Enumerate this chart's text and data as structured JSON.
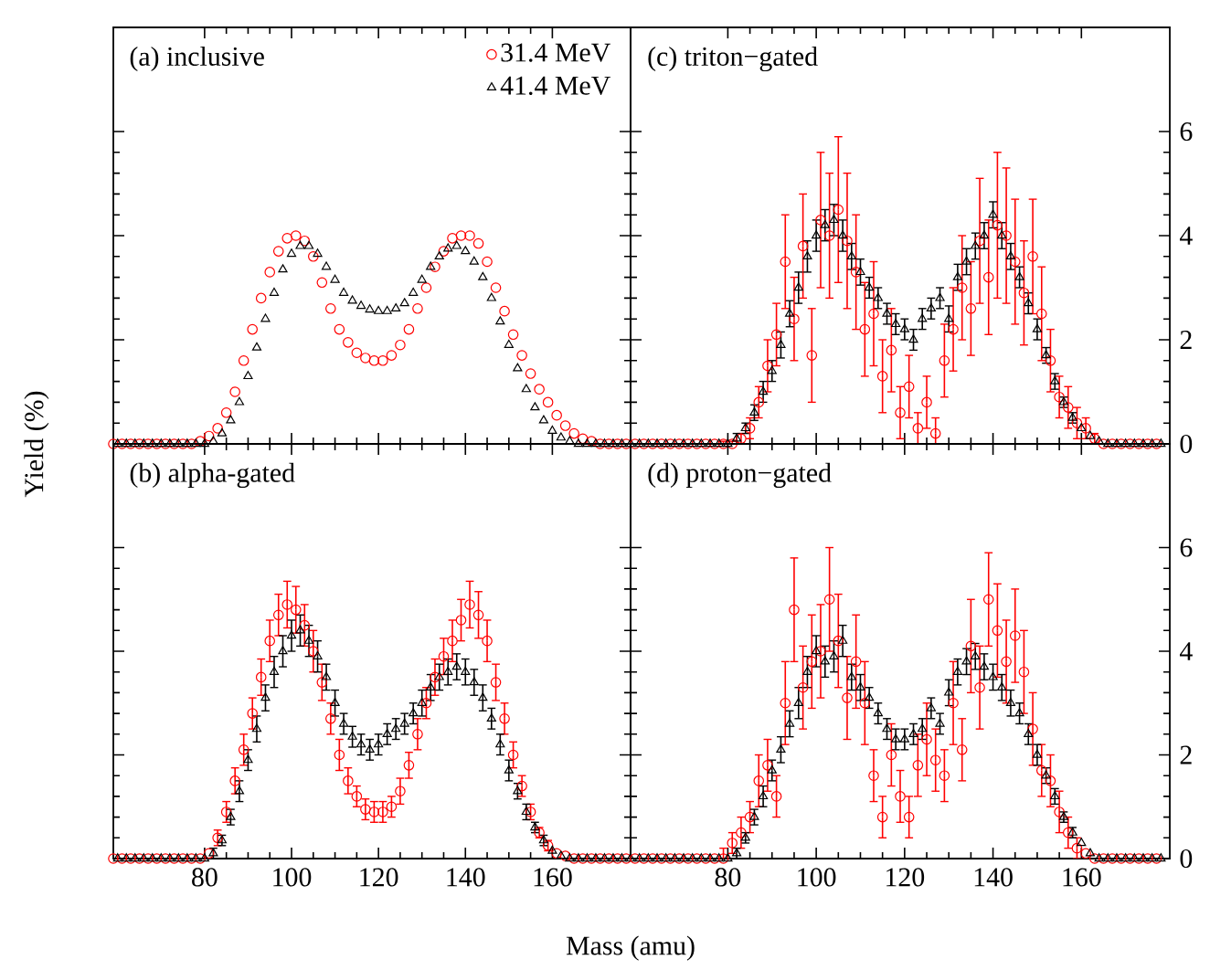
{
  "chart_data": [
    {
      "type": "scatter",
      "title": "(a) inclusive",
      "ylabel": "Yield (%)",
      "xlim": [
        59,
        178
      ],
      "ylim": [
        0,
        8
      ],
      "xticks": [
        80,
        100,
        120,
        140,
        160
      ],
      "yticks": [
        0,
        2,
        4,
        6
      ],
      "tick_labels": false,
      "legend": "top right",
      "x": [
        60,
        62,
        64,
        66,
        68,
        70,
        72,
        74,
        76,
        78,
        80,
        82,
        84,
        86,
        88,
        90,
        92,
        94,
        96,
        98,
        100,
        102,
        104,
        106,
        108,
        110,
        112,
        114,
        116,
        118,
        120,
        122,
        124,
        126,
        128,
        130,
        132,
        134,
        136,
        138,
        140,
        142,
        144,
        146,
        148,
        150,
        152,
        154,
        156,
        158,
        160,
        162,
        164,
        166,
        168,
        170,
        172,
        174,
        176,
        178
      ],
      "series": [
        {
          "name": "31.4 MeV",
          "color": "#ff0000",
          "marker": "circle",
          "x": [
            59,
            61,
            63,
            65,
            67,
            69,
            71,
            73,
            75,
            77,
            79,
            81,
            83,
            85,
            87,
            89,
            91,
            93,
            95,
            97,
            99,
            101,
            103,
            105,
            107,
            109,
            111,
            113,
            115,
            117,
            119,
            121,
            123,
            125,
            127,
            129,
            131,
            133,
            135,
            137,
            139,
            141,
            143,
            145,
            147,
            149,
            151,
            153,
            155,
            157,
            159,
            161,
            163,
            165,
            167,
            169,
            171,
            173,
            175,
            177
          ],
          "values": [
            0,
            0,
            0,
            0,
            0,
            0,
            0,
            0,
            0,
            0,
            0.05,
            0.15,
            0.3,
            0.6,
            1.0,
            1.6,
            2.2,
            2.8,
            3.3,
            3.7,
            3.95,
            4.0,
            3.9,
            3.6,
            3.1,
            2.6,
            2.2,
            1.95,
            1.75,
            1.65,
            1.6,
            1.6,
            1.7,
            1.9,
            2.2,
            2.6,
            3.0,
            3.4,
            3.7,
            3.95,
            4.0,
            4.0,
            3.85,
            3.5,
            3.0,
            2.55,
            2.1,
            1.7,
            1.35,
            1.05,
            0.8,
            0.55,
            0.35,
            0.2,
            0.1,
            0.05,
            0,
            0,
            0,
            0
          ]
        },
        {
          "name": "41.4 MeV",
          "color": "#000000",
          "marker": "triangle",
          "values": [
            0,
            0,
            0,
            0,
            0,
            0,
            0,
            0,
            0,
            0,
            0,
            0.05,
            0.2,
            0.45,
            0.8,
            1.3,
            1.85,
            2.4,
            2.9,
            3.35,
            3.65,
            3.8,
            3.8,
            3.65,
            3.4,
            3.15,
            2.9,
            2.75,
            2.65,
            2.58,
            2.55,
            2.55,
            2.6,
            2.7,
            2.9,
            3.15,
            3.4,
            3.6,
            3.75,
            3.8,
            3.7,
            3.5,
            3.2,
            2.8,
            2.35,
            1.9,
            1.45,
            1.05,
            0.7,
            0.45,
            0.25,
            0.12,
            0.05,
            0,
            0,
            0,
            0,
            0,
            0,
            0
          ]
        }
      ]
    },
    {
      "type": "scatter",
      "title": "(b) alpha-gated",
      "xlabel": "Mass (amu)",
      "xlim": [
        59,
        178
      ],
      "ylim": [
        0,
        8
      ],
      "xticks": [
        80,
        100,
        120,
        140,
        160
      ],
      "yticks": [
        0,
        2,
        4,
        6
      ],
      "tick_labels": "x",
      "x": [
        60,
        62,
        64,
        66,
        68,
        70,
        72,
        74,
        76,
        78,
        80,
        82,
        84,
        86,
        88,
        90,
        92,
        94,
        96,
        98,
        100,
        102,
        104,
        106,
        108,
        110,
        112,
        114,
        116,
        118,
        120,
        122,
        124,
        126,
        128,
        130,
        132,
        134,
        136,
        138,
        140,
        142,
        144,
        146,
        148,
        150,
        152,
        154,
        156,
        158,
        160,
        162,
        164,
        166,
        168,
        170,
        172,
        174,
        176,
        178
      ],
      "series": [
        {
          "color": "#ff0000",
          "marker": "circle",
          "x": [
            59,
            61,
            63,
            65,
            67,
            69,
            71,
            73,
            75,
            77,
            79,
            81,
            83,
            85,
            87,
            89,
            91,
            93,
            95,
            97,
            99,
            101,
            103,
            105,
            107,
            109,
            111,
            113,
            115,
            117,
            119,
            121,
            123,
            125,
            127,
            129,
            131,
            133,
            135,
            137,
            139,
            141,
            143,
            145,
            147,
            149,
            151,
            153,
            155,
            157,
            159,
            161,
            163,
            165,
            167,
            169,
            171,
            173,
            175,
            177
          ],
          "values": [
            0,
            0,
            0,
            0,
            0,
            0,
            0,
            0,
            0,
            0,
            0,
            0.1,
            0.4,
            0.9,
            1.5,
            2.1,
            2.8,
            3.5,
            4.2,
            4.7,
            4.9,
            4.8,
            4.5,
            4.0,
            3.4,
            2.7,
            2.0,
            1.5,
            1.2,
            0.95,
            0.9,
            0.9,
            1.0,
            1.3,
            1.8,
            2.4,
            3.0,
            3.5,
            3.9,
            4.2,
            4.6,
            4.9,
            4.7,
            4.2,
            3.4,
            2.7,
            2.0,
            1.4,
            0.9,
            0.5,
            0.25,
            0.1,
            0.05,
            0,
            0,
            0,
            0,
            0,
            0,
            0
          ],
          "errors": [
            null,
            null,
            null,
            null,
            null,
            null,
            null,
            null,
            null,
            null,
            null,
            null,
            0.15,
            0.2,
            0.25,
            0.3,
            0.3,
            0.35,
            0.4,
            0.4,
            0.45,
            0.45,
            0.4,
            0.4,
            0.35,
            0.3,
            0.3,
            0.25,
            0.2,
            0.2,
            0.2,
            0.2,
            0.2,
            0.25,
            0.25,
            0.3,
            0.3,
            0.35,
            0.35,
            0.4,
            0.4,
            0.45,
            0.45,
            0.4,
            0.35,
            0.3,
            0.25,
            0.2,
            0.15,
            0.1,
            0.1,
            null,
            null,
            null,
            null,
            null,
            null,
            null,
            null,
            null
          ]
        },
        {
          "color": "#000000",
          "marker": "triangle",
          "values": [
            0,
            0,
            0,
            0,
            0,
            0,
            0,
            0,
            0,
            0,
            0,
            0.1,
            0.35,
            0.8,
            1.3,
            1.9,
            2.5,
            3.1,
            3.6,
            4.0,
            4.3,
            4.4,
            4.2,
            3.9,
            3.5,
            3.0,
            2.6,
            2.35,
            2.2,
            2.1,
            2.2,
            2.4,
            2.5,
            2.6,
            2.8,
            3.0,
            3.3,
            3.5,
            3.6,
            3.7,
            3.6,
            3.4,
            3.1,
            2.7,
            2.2,
            1.7,
            1.3,
            0.9,
            0.6,
            0.35,
            0.15,
            0.05,
            0,
            0,
            0,
            0,
            0,
            0,
            0,
            0
          ],
          "errors": [
            null,
            null,
            null,
            null,
            null,
            null,
            null,
            null,
            null,
            null,
            null,
            0.1,
            0.1,
            0.15,
            0.2,
            0.2,
            0.25,
            0.25,
            0.3,
            0.3,
            0.3,
            0.3,
            0.3,
            0.3,
            0.25,
            0.25,
            0.2,
            0.2,
            0.2,
            0.2,
            0.2,
            0.2,
            0.2,
            0.2,
            0.2,
            0.25,
            0.25,
            0.25,
            0.25,
            0.25,
            0.25,
            0.25,
            0.25,
            0.2,
            0.2,
            0.2,
            0.15,
            0.15,
            0.1,
            0.1,
            null,
            null,
            null,
            null,
            null,
            null,
            null,
            null,
            null,
            null
          ]
        }
      ]
    },
    {
      "type": "scatter",
      "title": "(c) triton−gated",
      "xlim": [
        58,
        180
      ],
      "ylim": [
        0,
        8
      ],
      "xticks": [
        80,
        100,
        120,
        140,
        160
      ],
      "yticks": [
        0,
        2,
        4,
        6
      ],
      "tick_labels": "y",
      "x": [
        60,
        62,
        64,
        66,
        68,
        70,
        72,
        74,
        76,
        78,
        80,
        82,
        84,
        86,
        88,
        90,
        92,
        94,
        96,
        98,
        100,
        102,
        104,
        106,
        108,
        110,
        112,
        114,
        116,
        118,
        120,
        122,
        124,
        126,
        128,
        130,
        132,
        134,
        136,
        138,
        140,
        142,
        144,
        146,
        148,
        150,
        152,
        154,
        156,
        158,
        160,
        162,
        164,
        166,
        168,
        170,
        172,
        174,
        176,
        178
      ],
      "series": [
        {
          "color": "#ff0000",
          "marker": "circle",
          "x": [
            59,
            61,
            63,
            65,
            67,
            69,
            71,
            73,
            75,
            77,
            79,
            81,
            83,
            85,
            87,
            89,
            91,
            93,
            95,
            97,
            99,
            101,
            103,
            105,
            107,
            109,
            111,
            113,
            115,
            117,
            119,
            121,
            123,
            125,
            127,
            129,
            131,
            133,
            135,
            137,
            139,
            141,
            143,
            145,
            147,
            149,
            151,
            153,
            155,
            157,
            159,
            161,
            163,
            165,
            167,
            169,
            171,
            173,
            175,
            177
          ],
          "values": [
            0,
            0,
            0,
            0,
            0,
            0,
            0,
            0,
            0,
            0,
            0,
            0,
            0.1,
            0.3,
            0.8,
            1.5,
            2.1,
            3.5,
            2.4,
            3.8,
            1.7,
            4.3,
            4.0,
            4.5,
            3.9,
            3.3,
            2.2,
            2.5,
            1.3,
            1.8,
            0.6,
            1.1,
            0.3,
            0.8,
            0.2,
            1.6,
            2.2,
            3.0,
            2.6,
            3.9,
            3.2,
            4.2,
            4.0,
            3.5,
            2.9,
            3.6,
            2.5,
            1.6,
            0.9,
            0.7,
            0.4,
            0.3,
            0.1,
            0,
            0,
            0,
            0,
            0,
            0,
            0
          ],
          "errors": [
            null,
            null,
            null,
            null,
            null,
            null,
            null,
            null,
            null,
            null,
            0.05,
            0.05,
            0.1,
            0.2,
            0.3,
            0.5,
            0.6,
            0.9,
            0.8,
            1.0,
            0.9,
            1.3,
            1.2,
            1.4,
            1.3,
            1.1,
            0.9,
            1.0,
            0.7,
            0.8,
            0.5,
            0.6,
            0.3,
            0.5,
            0.3,
            0.7,
            0.8,
            1.0,
            0.9,
            1.2,
            1.1,
            1.4,
            1.3,
            1.2,
            1.0,
            1.1,
            0.9,
            0.6,
            0.4,
            0.4,
            0.3,
            0.2,
            0.1,
            null,
            null,
            null,
            null,
            null,
            null,
            null
          ]
        },
        {
          "color": "#000000",
          "marker": "triangle",
          "values": [
            0,
            0,
            0,
            0,
            0,
            0,
            0,
            0,
            0,
            0,
            0,
            0.1,
            0.3,
            0.6,
            1.0,
            1.4,
            1.9,
            2.5,
            3.0,
            3.6,
            4.0,
            4.2,
            4.3,
            4.0,
            3.6,
            3.3,
            3.0,
            2.8,
            2.5,
            2.3,
            2.2,
            2.0,
            2.4,
            2.6,
            2.8,
            2.4,
            3.2,
            3.5,
            3.8,
            4.0,
            4.4,
            4.0,
            3.6,
            3.2,
            2.7,
            2.2,
            1.7,
            1.2,
            0.8,
            0.5,
            0.3,
            0.15,
            0.05,
            0,
            0,
            0,
            0,
            0,
            0,
            0
          ],
          "errors": [
            null,
            null,
            null,
            null,
            null,
            null,
            null,
            null,
            null,
            null,
            null,
            0.1,
            0.1,
            0.15,
            0.2,
            0.2,
            0.25,
            0.25,
            0.3,
            0.3,
            0.3,
            0.3,
            0.3,
            0.3,
            0.25,
            0.25,
            0.2,
            0.2,
            0.2,
            0.2,
            0.2,
            0.2,
            0.2,
            0.2,
            0.2,
            0.25,
            0.25,
            0.25,
            0.25,
            0.25,
            0.25,
            0.25,
            0.25,
            0.2,
            0.2,
            0.2,
            0.15,
            0.15,
            0.1,
            0.1,
            null,
            null,
            null,
            null,
            null,
            null,
            null,
            null,
            null,
            null
          ]
        }
      ]
    },
    {
      "type": "scatter",
      "title": "(d)  proton−gated",
      "xlim": [
        58,
        180
      ],
      "ylim": [
        0,
        8
      ],
      "xticks": [
        80,
        100,
        120,
        140,
        160
      ],
      "yticks": [
        0,
        2,
        4,
        6
      ],
      "x": [
        60,
        62,
        64,
        66,
        68,
        70,
        72,
        74,
        76,
        78,
        80,
        82,
        84,
        86,
        88,
        90,
        92,
        94,
        96,
        98,
        100,
        102,
        104,
        106,
        108,
        110,
        112,
        114,
        116,
        118,
        120,
        122,
        124,
        126,
        128,
        130,
        132,
        134,
        136,
        138,
        140,
        142,
        144,
        146,
        148,
        150,
        152,
        154,
        156,
        158,
        160,
        162,
        164,
        166,
        168,
        170,
        172,
        174,
        176,
        178
      ],
      "series": [
        {
          "color": "#ff0000",
          "marker": "circle",
          "x": [
            59,
            61,
            63,
            65,
            67,
            69,
            71,
            73,
            75,
            77,
            79,
            81,
            83,
            85,
            87,
            89,
            91,
            93,
            95,
            97,
            99,
            101,
            103,
            105,
            107,
            109,
            111,
            113,
            115,
            117,
            119,
            121,
            123,
            125,
            127,
            129,
            131,
            133,
            135,
            137,
            139,
            141,
            143,
            145,
            147,
            149,
            151,
            153,
            155,
            157,
            159,
            161,
            163,
            165,
            167,
            169,
            171,
            173,
            175,
            177
          ],
          "values": [
            0,
            0,
            0,
            0,
            0,
            0,
            0,
            0,
            0,
            0,
            0,
            0.3,
            0.5,
            0.8,
            1.5,
            1.8,
            1.2,
            3.0,
            4.8,
            3.3,
            3.8,
            4.0,
            5.0,
            4.2,
            3.1,
            3.8,
            3.0,
            1.6,
            0.8,
            2.0,
            1.2,
            0.8,
            1.8,
            2.3,
            1.9,
            1.6,
            3.0,
            2.1,
            4.1,
            3.3,
            5.0,
            4.4,
            3.8,
            4.3,
            3.6,
            2.5,
            1.7,
            1.5,
            0.9,
            0.5,
            0.2,
            0.1,
            0,
            0,
            0,
            0,
            0,
            0,
            0,
            0
          ],
          "errors": [
            null,
            null,
            null,
            null,
            null,
            null,
            null,
            null,
            null,
            null,
            0.2,
            0.2,
            0.3,
            0.3,
            0.5,
            0.5,
            0.4,
            0.8,
            1.0,
            0.8,
            0.9,
            0.9,
            1.0,
            0.9,
            0.8,
            0.9,
            0.8,
            0.5,
            0.4,
            0.6,
            0.5,
            0.4,
            0.6,
            0.7,
            0.6,
            0.5,
            0.8,
            0.6,
            0.9,
            0.8,
            0.9,
            0.9,
            0.8,
            0.9,
            0.8,
            0.7,
            0.5,
            0.5,
            0.4,
            0.3,
            0.2,
            null,
            null,
            null,
            null,
            null,
            null,
            null,
            null,
            null
          ]
        },
        {
          "color": "#000000",
          "marker": "triangle",
          "values": [
            0,
            0,
            0,
            0,
            0,
            0,
            0,
            0,
            0,
            0,
            0,
            0.1,
            0.4,
            0.8,
            1.2,
            1.7,
            2.1,
            2.6,
            3.0,
            3.6,
            4.0,
            3.8,
            3.9,
            4.2,
            3.5,
            3.3,
            3.1,
            2.8,
            2.5,
            2.3,
            2.3,
            2.4,
            2.5,
            2.9,
            2.6,
            3.2,
            3.6,
            3.8,
            3.9,
            3.7,
            3.5,
            3.3,
            3.0,
            2.8,
            2.4,
            2.0,
            1.6,
            1.2,
            0.8,
            0.5,
            0.3,
            0.1,
            0,
            0,
            0,
            0,
            0,
            0,
            0,
            0
          ],
          "errors": [
            null,
            null,
            null,
            null,
            null,
            null,
            null,
            null,
            null,
            null,
            null,
            0.1,
            0.1,
            0.15,
            0.2,
            0.2,
            0.25,
            0.25,
            0.3,
            0.3,
            0.3,
            0.3,
            0.3,
            0.3,
            0.25,
            0.25,
            0.2,
            0.2,
            0.2,
            0.2,
            0.2,
            0.2,
            0.2,
            0.2,
            0.2,
            0.25,
            0.25,
            0.25,
            0.25,
            0.25,
            0.25,
            0.25,
            0.25,
            0.2,
            0.2,
            0.2,
            0.15,
            0.15,
            0.1,
            0.1,
            null,
            null,
            null,
            null,
            null,
            null,
            null,
            null,
            null,
            null
          ]
        }
      ]
    }
  ]
}
